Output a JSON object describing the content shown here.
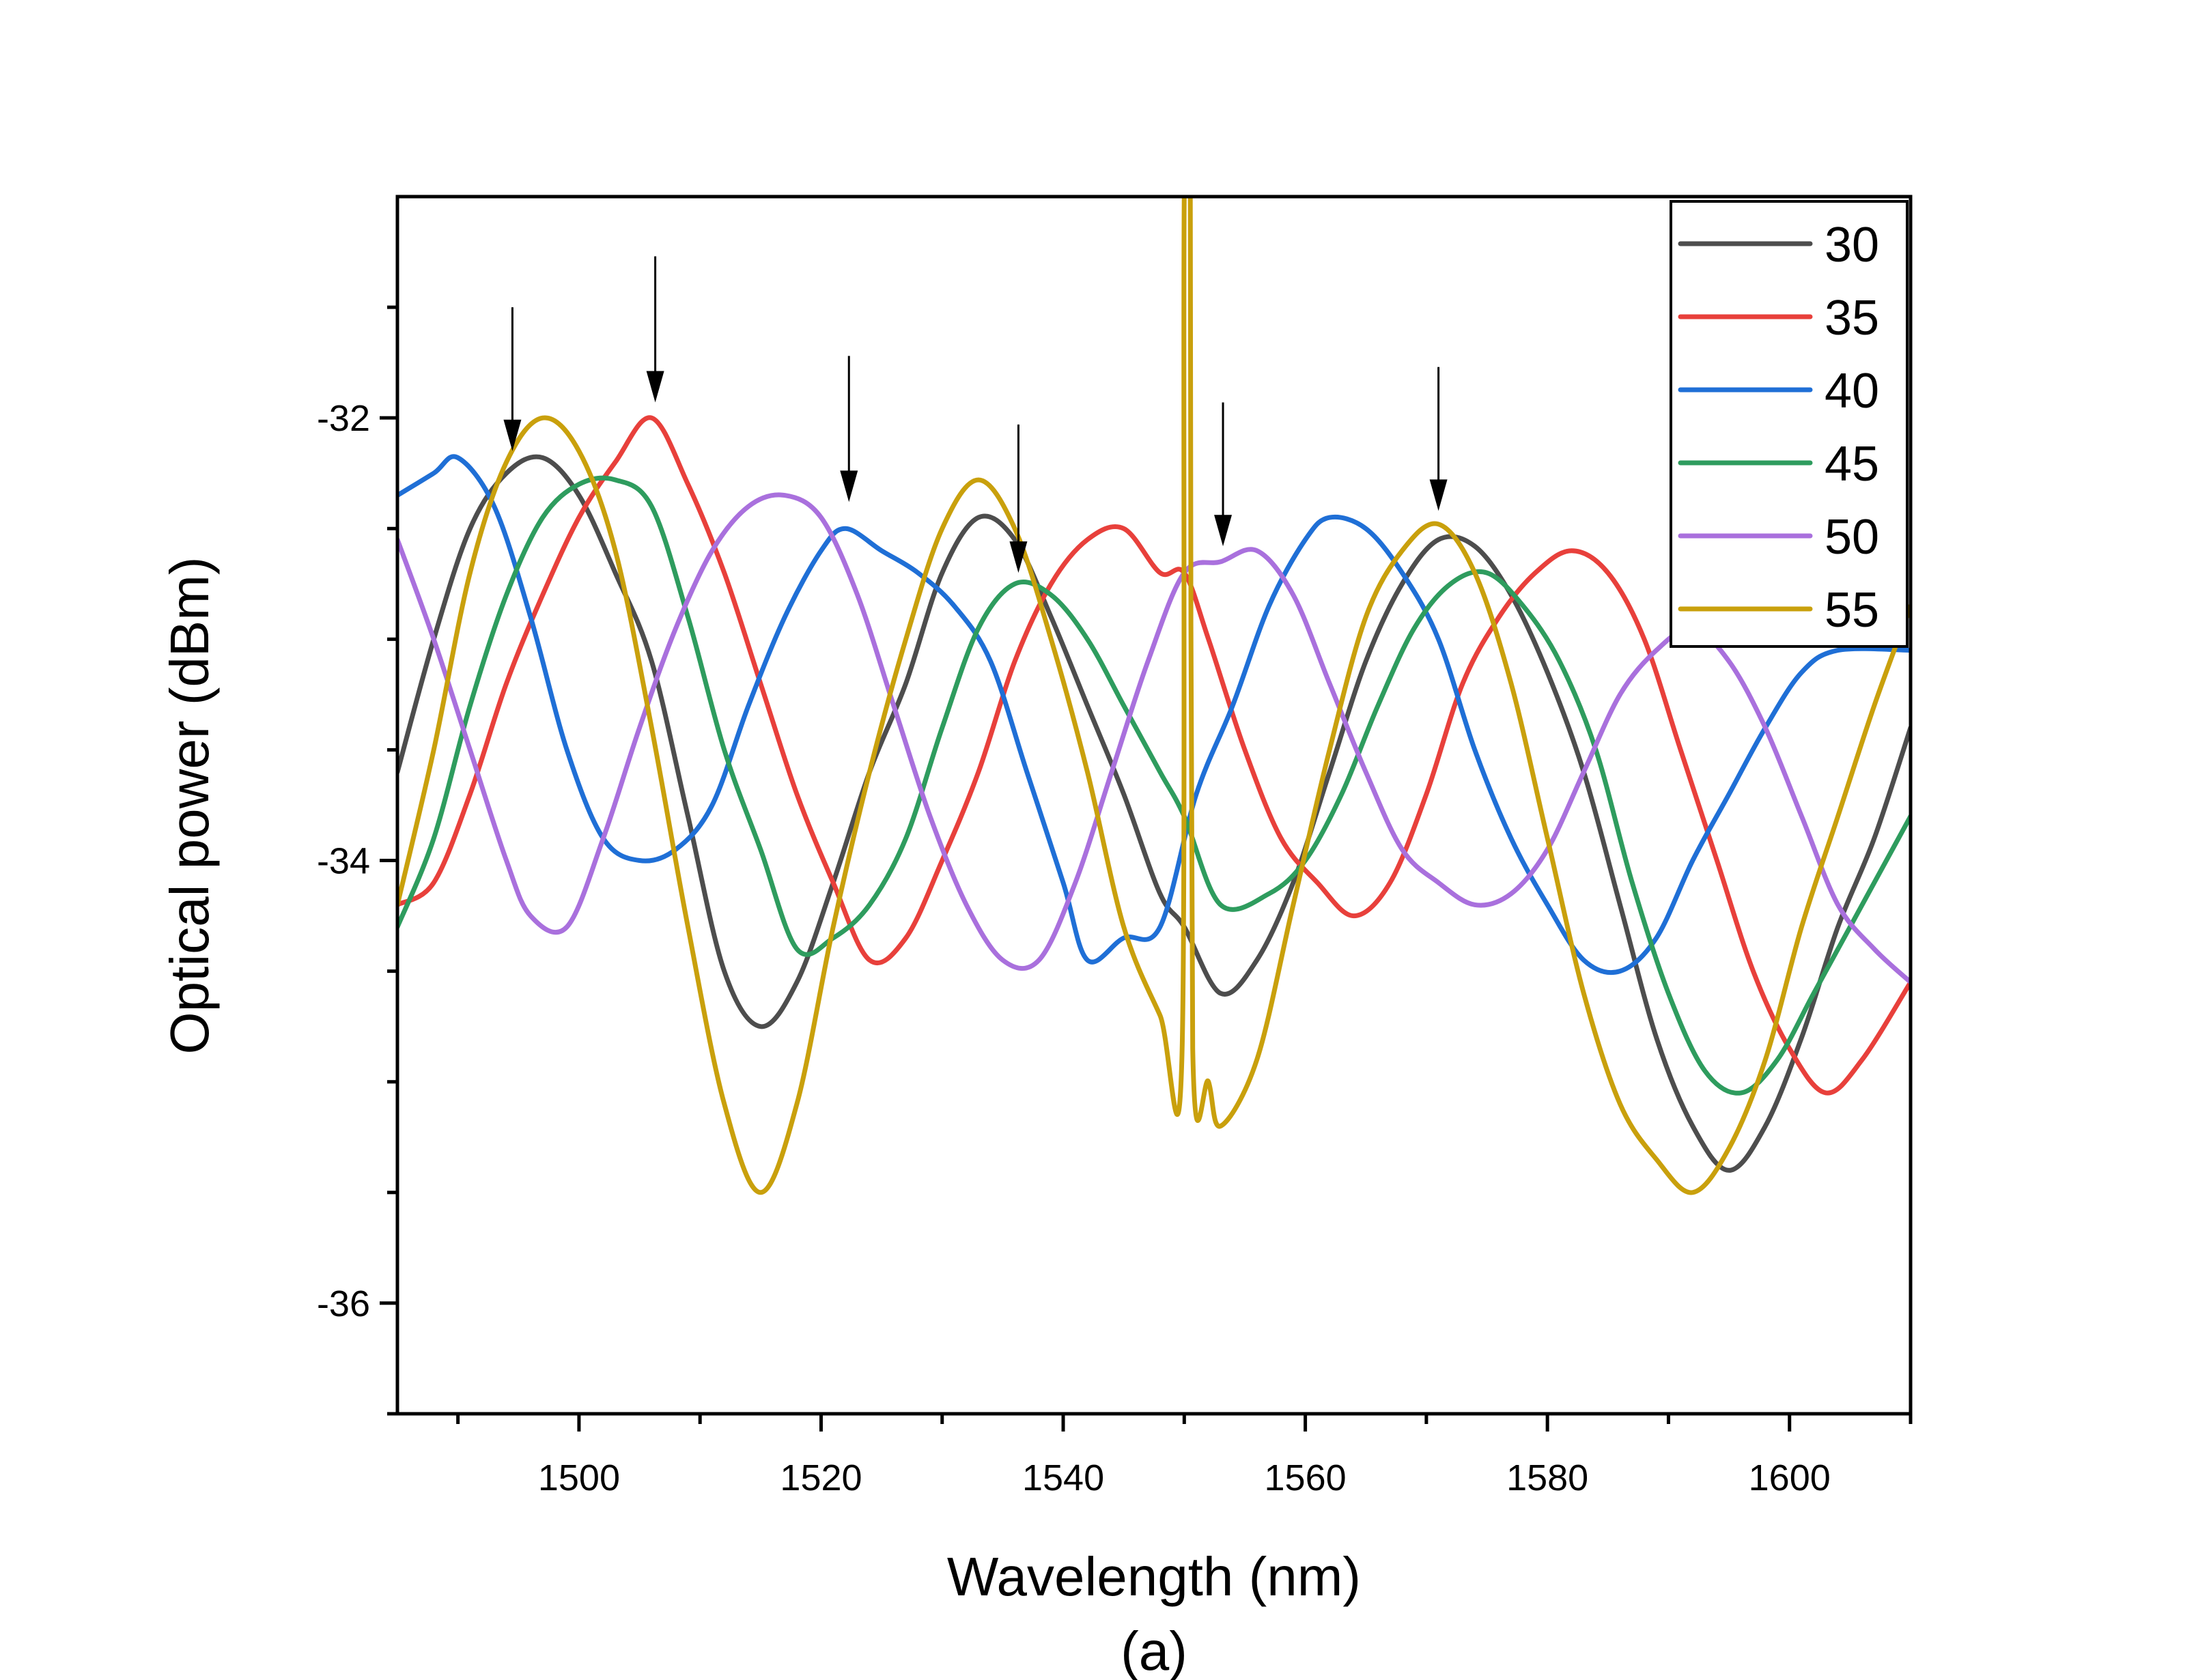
{
  "chart_data": {
    "type": "line",
    "title": "",
    "xlabel": "Wavelength (nm)",
    "ylabel": "Optical power (dBm)",
    "caption": "(a)",
    "xlim": [
      1485,
      1610
    ],
    "ylim": [
      -36.5,
      -31
    ],
    "x_ticks": [
      1500,
      1520,
      1540,
      1560,
      1580,
      1600
    ],
    "x_tick_labels": [
      "1500",
      "1520",
      "1540",
      "1560",
      "1580",
      "1600"
    ],
    "y_ticks": [
      -36,
      -34,
      -32
    ],
    "y_tick_labels": [
      "-36",
      "-34",
      "-32"
    ],
    "grid": false,
    "legend_position": "top-right",
    "series": [
      {
        "name": "30",
        "color": "#4d4d4d",
        "points": [
          [
            1485,
            -33.6
          ],
          [
            1488,
            -33.0
          ],
          [
            1491,
            -32.5
          ],
          [
            1494,
            -32.25
          ],
          [
            1497,
            -32.18
          ],
          [
            1500,
            -32.35
          ],
          [
            1503,
            -32.7
          ],
          [
            1506,
            -33.1
          ],
          [
            1509,
            -33.8
          ],
          [
            1512,
            -34.5
          ],
          [
            1515,
            -34.75
          ],
          [
            1518,
            -34.55
          ],
          [
            1521,
            -34.1
          ],
          [
            1524,
            -33.6
          ],
          [
            1527,
            -33.2
          ],
          [
            1530,
            -32.7
          ],
          [
            1533,
            -32.45
          ],
          [
            1536,
            -32.55
          ],
          [
            1539,
            -32.9
          ],
          [
            1542,
            -33.3
          ],
          [
            1545,
            -33.7
          ],
          [
            1548,
            -34.15
          ],
          [
            1550,
            -34.3
          ],
          [
            1553,
            -34.6
          ],
          [
            1556,
            -34.45
          ],
          [
            1559,
            -34.1
          ],
          [
            1562,
            -33.6
          ],
          [
            1565,
            -33.1
          ],
          [
            1568,
            -32.75
          ],
          [
            1571,
            -32.55
          ],
          [
            1574,
            -32.58
          ],
          [
            1577,
            -32.8
          ],
          [
            1580,
            -33.15
          ],
          [
            1583,
            -33.6
          ],
          [
            1586,
            -34.2
          ],
          [
            1589,
            -34.8
          ],
          [
            1592,
            -35.2
          ],
          [
            1595,
            -35.4
          ],
          [
            1598,
            -35.2
          ],
          [
            1601,
            -34.8
          ],
          [
            1604,
            -34.3
          ],
          [
            1607,
            -33.9
          ],
          [
            1610,
            -33.4
          ]
        ]
      },
      {
        "name": "35",
        "color": "#e8403b",
        "points": [
          [
            1485,
            -34.2
          ],
          [
            1488,
            -34.1
          ],
          [
            1491,
            -33.7
          ],
          [
            1494,
            -33.2
          ],
          [
            1497,
            -32.8
          ],
          [
            1500,
            -32.45
          ],
          [
            1503,
            -32.2
          ],
          [
            1506,
            -32.0
          ],
          [
            1509,
            -32.3
          ],
          [
            1512,
            -32.7
          ],
          [
            1515,
            -33.2
          ],
          [
            1518,
            -33.7
          ],
          [
            1521,
            -34.1
          ],
          [
            1524,
            -34.45
          ],
          [
            1527,
            -34.35
          ],
          [
            1530,
            -34.0
          ],
          [
            1533,
            -33.6
          ],
          [
            1536,
            -33.1
          ],
          [
            1539,
            -32.75
          ],
          [
            1542,
            -32.55
          ],
          [
            1545,
            -32.5
          ],
          [
            1548,
            -32.7
          ],
          [
            1550,
            -32.7
          ],
          [
            1552,
            -33.0
          ],
          [
            1555,
            -33.5
          ],
          [
            1558,
            -33.9
          ],
          [
            1561,
            -34.1
          ],
          [
            1564,
            -34.25
          ],
          [
            1567,
            -34.1
          ],
          [
            1570,
            -33.7
          ],
          [
            1573,
            -33.2
          ],
          [
            1576,
            -32.9
          ],
          [
            1579,
            -32.7
          ],
          [
            1582,
            -32.6
          ],
          [
            1585,
            -32.7
          ],
          [
            1588,
            -33.0
          ],
          [
            1591,
            -33.5
          ],
          [
            1594,
            -34.0
          ],
          [
            1597,
            -34.5
          ],
          [
            1600,
            -34.85
          ],
          [
            1603,
            -35.05
          ],
          [
            1606,
            -34.9
          ],
          [
            1610,
            -34.55
          ]
        ]
      },
      {
        "name": "40",
        "color": "#1f6fd6",
        "points": [
          [
            1485,
            -32.35
          ],
          [
            1488,
            -32.25
          ],
          [
            1490,
            -32.18
          ],
          [
            1493,
            -32.4
          ],
          [
            1496,
            -32.9
          ],
          [
            1499,
            -33.5
          ],
          [
            1502,
            -33.9
          ],
          [
            1505,
            -34.0
          ],
          [
            1508,
            -33.95
          ],
          [
            1511,
            -33.75
          ],
          [
            1514,
            -33.3
          ],
          [
            1517,
            -32.9
          ],
          [
            1520,
            -32.6
          ],
          [
            1522,
            -32.5
          ],
          [
            1525,
            -32.6
          ],
          [
            1528,
            -32.7
          ],
          [
            1531,
            -32.85
          ],
          [
            1534,
            -33.1
          ],
          [
            1537,
            -33.6
          ],
          [
            1540,
            -34.1
          ],
          [
            1542,
            -34.45
          ],
          [
            1545,
            -34.35
          ],
          [
            1548,
            -34.3
          ],
          [
            1551,
            -33.7
          ],
          [
            1554,
            -33.3
          ],
          [
            1557,
            -32.85
          ],
          [
            1560,
            -32.55
          ],
          [
            1562,
            -32.45
          ],
          [
            1565,
            -32.5
          ],
          [
            1568,
            -32.7
          ],
          [
            1571,
            -33.0
          ],
          [
            1574,
            -33.5
          ],
          [
            1577,
            -33.9
          ],
          [
            1580,
            -34.2
          ],
          [
            1583,
            -34.45
          ],
          [
            1586,
            -34.5
          ],
          [
            1589,
            -34.35
          ],
          [
            1592,
            -34.0
          ],
          [
            1595,
            -33.7
          ],
          [
            1598,
            -33.4
          ],
          [
            1601,
            -33.15
          ],
          [
            1604,
            -33.05
          ],
          [
            1610,
            -33.05
          ]
        ]
      },
      {
        "name": "45",
        "color": "#2e9c5e",
        "points": [
          [
            1485,
            -34.3
          ],
          [
            1488,
            -33.9
          ],
          [
            1491,
            -33.3
          ],
          [
            1494,
            -32.8
          ],
          [
            1497,
            -32.45
          ],
          [
            1500,
            -32.3
          ],
          [
            1503,
            -32.28
          ],
          [
            1506,
            -32.4
          ],
          [
            1509,
            -32.9
          ],
          [
            1512,
            -33.5
          ],
          [
            1515,
            -33.95
          ],
          [
            1518,
            -34.4
          ],
          [
            1521,
            -34.35
          ],
          [
            1524,
            -34.2
          ],
          [
            1527,
            -33.9
          ],
          [
            1530,
            -33.4
          ],
          [
            1533,
            -32.95
          ],
          [
            1536,
            -32.75
          ],
          [
            1539,
            -32.8
          ],
          [
            1542,
            -33.0
          ],
          [
            1545,
            -33.3
          ],
          [
            1548,
            -33.6
          ],
          [
            1550,
            -33.8
          ],
          [
            1553,
            -34.2
          ],
          [
            1557,
            -34.15
          ],
          [
            1560,
            -34.0
          ],
          [
            1563,
            -33.7
          ],
          [
            1566,
            -33.3
          ],
          [
            1569,
            -32.95
          ],
          [
            1572,
            -32.75
          ],
          [
            1575,
            -32.7
          ],
          [
            1578,
            -32.85
          ],
          [
            1581,
            -33.1
          ],
          [
            1584,
            -33.5
          ],
          [
            1587,
            -34.1
          ],
          [
            1590,
            -34.6
          ],
          [
            1593,
            -34.95
          ],
          [
            1596,
            -35.05
          ],
          [
            1599,
            -34.9
          ],
          [
            1602,
            -34.6
          ],
          [
            1605,
            -34.3
          ],
          [
            1610,
            -33.8
          ]
        ]
      },
      {
        "name": "50",
        "color": "#a970dd",
        "points": [
          [
            1485,
            -32.55
          ],
          [
            1488,
            -33.0
          ],
          [
            1491,
            -33.5
          ],
          [
            1494,
            -34.0
          ],
          [
            1496,
            -34.25
          ],
          [
            1499,
            -34.3
          ],
          [
            1502,
            -33.9
          ],
          [
            1505,
            -33.4
          ],
          [
            1508,
            -32.95
          ],
          [
            1511,
            -32.6
          ],
          [
            1514,
            -32.4
          ],
          [
            1517,
            -32.35
          ],
          [
            1520,
            -32.45
          ],
          [
            1523,
            -32.8
          ],
          [
            1526,
            -33.3
          ],
          [
            1529,
            -33.8
          ],
          [
            1532,
            -34.2
          ],
          [
            1535,
            -34.45
          ],
          [
            1538,
            -34.45
          ],
          [
            1541,
            -34.1
          ],
          [
            1544,
            -33.6
          ],
          [
            1547,
            -33.1
          ],
          [
            1550,
            -32.7
          ],
          [
            1553,
            -32.65
          ],
          [
            1556,
            -32.6
          ],
          [
            1559,
            -32.8
          ],
          [
            1562,
            -33.2
          ],
          [
            1565,
            -33.6
          ],
          [
            1568,
            -33.95
          ],
          [
            1571,
            -34.1
          ],
          [
            1574,
            -34.2
          ],
          [
            1577,
            -34.15
          ],
          [
            1580,
            -33.95
          ],
          [
            1583,
            -33.6
          ],
          [
            1586,
            -33.25
          ],
          [
            1589,
            -33.05
          ],
          [
            1592,
            -32.95
          ],
          [
            1595,
            -33.1
          ],
          [
            1598,
            -33.4
          ],
          [
            1601,
            -33.8
          ],
          [
            1604,
            -34.2
          ],
          [
            1607,
            -34.4
          ],
          [
            1610,
            -34.55
          ]
        ]
      },
      {
        "name": "55",
        "color": "#c9a00c",
        "points": [
          [
            1485,
            -34.2
          ],
          [
            1488,
            -33.5
          ],
          [
            1491,
            -32.7
          ],
          [
            1494,
            -32.2
          ],
          [
            1497,
            -32.0
          ],
          [
            1500,
            -32.15
          ],
          [
            1503,
            -32.6
          ],
          [
            1506,
            -33.4
          ],
          [
            1509,
            -34.3
          ],
          [
            1512,
            -35.1
          ],
          [
            1515,
            -35.5
          ],
          [
            1518,
            -35.1
          ],
          [
            1521,
            -34.3
          ],
          [
            1524,
            -33.6
          ],
          [
            1527,
            -33.0
          ],
          [
            1530,
            -32.5
          ],
          [
            1533,
            -32.28
          ],
          [
            1536,
            -32.5
          ],
          [
            1539,
            -33.0
          ],
          [
            1542,
            -33.6
          ],
          [
            1545,
            -34.3
          ],
          [
            1548,
            -34.7
          ],
          [
            1549.8,
            -34.9
          ],
          [
            1550,
            -31
          ],
          [
            1550.5,
            -31
          ],
          [
            1550.7,
            -34.85
          ],
          [
            1552,
            -35.0
          ],
          [
            1553,
            -35.2
          ],
          [
            1556,
            -34.9
          ],
          [
            1559,
            -34.2
          ],
          [
            1562,
            -33.5
          ],
          [
            1565,
            -32.9
          ],
          [
            1568,
            -32.6
          ],
          [
            1571,
            -32.48
          ],
          [
            1574,
            -32.7
          ],
          [
            1577,
            -33.2
          ],
          [
            1580,
            -33.9
          ],
          [
            1583,
            -34.6
          ],
          [
            1586,
            -35.1
          ],
          [
            1589,
            -35.35
          ],
          [
            1592,
            -35.5
          ],
          [
            1595,
            -35.3
          ],
          [
            1598,
            -34.9
          ],
          [
            1601,
            -34.3
          ],
          [
            1604,
            -33.8
          ],
          [
            1607,
            -33.3
          ],
          [
            1610,
            -32.85
          ]
        ]
      }
    ],
    "annotations": [
      {
        "type": "arrow",
        "x": 1494.5,
        "y_tip": -32.15,
        "y_tail": -31.5
      },
      {
        "type": "arrow",
        "x": 1506.3,
        "y_tip": -31.93,
        "y_tail": -31.27
      },
      {
        "type": "arrow",
        "x": 1522.3,
        "y_tip": -32.38,
        "y_tail": -31.72
      },
      {
        "type": "arrow",
        "x": 1536.3,
        "y_tip": -32.7,
        "y_tail": -32.03
      },
      {
        "type": "arrow",
        "x": 1553.2,
        "y_tip": -32.58,
        "y_tail": -31.93
      },
      {
        "type": "arrow",
        "x": 1571.0,
        "y_tip": -32.42,
        "y_tail": -31.77
      }
    ]
  }
}
